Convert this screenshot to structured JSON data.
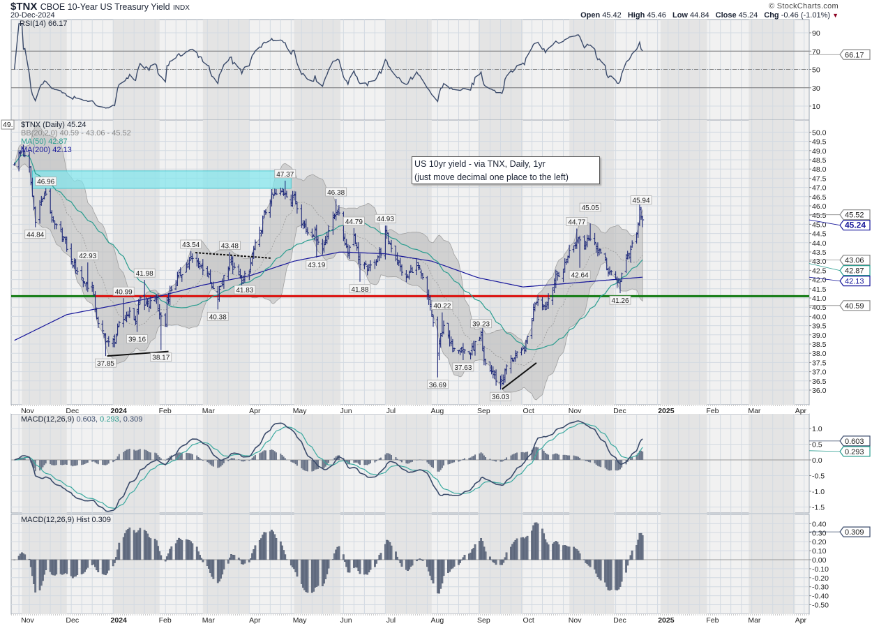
{
  "header": {
    "symbol": "$TNX",
    "name": "CBOE 10-Year US Treasury Yield",
    "exchange": "INDX",
    "date": "20-Dec-2024",
    "copyright": "© StockCharts.com",
    "open_label": "Open",
    "open": "45.42",
    "high_label": "High",
    "high": "45.46",
    "low_label": "Low",
    "low": "44.84",
    "close_label": "Close",
    "close": "45.24",
    "chg_label": "Chg",
    "chg": "-0.46 (-1.01%)"
  },
  "legends": {
    "rsi": "RSI(14) 66.17",
    "price": "$TNX (Daily) 45.24",
    "bb": "BB(20,2.0) 40.59 - 43.06 - 45.52",
    "ma50": "MA(50) 42.87",
    "ma200": "MA(200) 42.13",
    "macd_name": "MACD(12,26,9)",
    "macd_v1": "0.603",
    "macd_v2": "0.293",
    "macd_v3": "0.309",
    "hist": "MACD(12,26,9) Hist 0.309"
  },
  "note": {
    "line1": "US 10yr yield - via TNX, Daily, 1yr",
    "line2": "(just move decimal one place to the left)"
  },
  "colors": {
    "bars": "#1f2a7a",
    "ma50": "#2a9d8f",
    "ma200": "#16169a",
    "bb": "#9a9a9a",
    "zone": "#7fe6ec",
    "support": "#117a11",
    "resistance": "#e01010",
    "macd": "#3a4a6a",
    "signal": "#3aa99f",
    "hist": "#6a7488"
  },
  "chart_data": {
    "type": "line",
    "title": "$TNX CBOE 10-Year US Treasury Yield",
    "start": "2023-10-27",
    "end": "2024-12-20",
    "last_bar": {
      "date": "2024-12-20",
      "open": 45.42,
      "high": 45.46,
      "low": 44.84,
      "close": 45.24
    },
    "close_anchors": [
      [
        "2023-10-27",
        48.4
      ],
      [
        "2023-10-30",
        48.8
      ],
      [
        "2023-11-01",
        49.0
      ],
      [
        "2023-11-06",
        48.0
      ],
      [
        "2023-11-08",
        46.5
      ],
      [
        "2023-11-10",
        45.3
      ],
      [
        "2023-11-14",
        46.3
      ],
      [
        "2023-11-17",
        46.7
      ],
      [
        "2023-11-22",
        45.0
      ],
      [
        "2023-11-28",
        44.5
      ],
      [
        "2023-12-04",
        43.0
      ],
      [
        "2023-12-08",
        42.5
      ],
      [
        "2023-12-13",
        41.8
      ],
      [
        "2023-12-18",
        41.5
      ],
      [
        "2023-12-20",
        40.5
      ],
      [
        "2023-12-22",
        39.5
      ],
      [
        "2023-12-27",
        38.8
      ],
      [
        "2023-12-29",
        38.5
      ],
      [
        "2024-01-02",
        38.7
      ],
      [
        "2024-01-05",
        39.5
      ],
      [
        "2024-01-11",
        40.2
      ],
      [
        "2024-01-16",
        39.8
      ],
      [
        "2024-01-19",
        41.0
      ],
      [
        "2024-01-24",
        40.5
      ],
      [
        "2024-01-29",
        41.2
      ],
      [
        "2024-01-31",
        40.3
      ],
      [
        "2024-02-05",
        39.5
      ],
      [
        "2024-02-06",
        40.9
      ],
      [
        "2024-02-09",
        41.5
      ],
      [
        "2024-02-14",
        42.2
      ],
      [
        "2024-02-20",
        42.9
      ],
      [
        "2024-02-23",
        43.1
      ],
      [
        "2024-02-28",
        42.8
      ],
      [
        "2024-03-04",
        42.4
      ],
      [
        "2024-03-07",
        41.5
      ],
      [
        "2024-03-11",
        41.0
      ],
      [
        "2024-03-14",
        42.0
      ],
      [
        "2024-03-19",
        43.0
      ],
      [
        "2024-03-22",
        42.5
      ],
      [
        "2024-03-27",
        42.0
      ],
      [
        "2024-04-01",
        42.4
      ],
      [
        "2024-04-03",
        43.4
      ],
      [
        "2024-04-08",
        44.5
      ],
      [
        "2024-04-11",
        45.5
      ],
      [
        "2024-04-16",
        46.5
      ],
      [
        "2024-04-19",
        46.6
      ],
      [
        "2024-04-25",
        46.8
      ],
      [
        "2024-04-29",
        46.2
      ],
      [
        "2024-05-01",
        46.6
      ],
      [
        "2024-05-06",
        45.2
      ],
      [
        "2024-05-10",
        44.6
      ],
      [
        "2024-05-15",
        44.5
      ],
      [
        "2024-05-20",
        43.6
      ],
      [
        "2024-05-23",
        44.5
      ],
      [
        "2024-05-28",
        45.5
      ],
      [
        "2024-05-30",
        45.8
      ],
      [
        "2024-06-03",
        44.3
      ],
      [
        "2024-06-06",
        43.5
      ],
      [
        "2024-06-10",
        44.5
      ],
      [
        "2024-06-14",
        42.8
      ],
      [
        "2024-06-20",
        42.6
      ],
      [
        "2024-06-24",
        43.0
      ],
      [
        "2024-06-28",
        43.5
      ],
      [
        "2024-07-01",
        44.5
      ],
      [
        "2024-07-05",
        43.8
      ],
      [
        "2024-07-09",
        43.0
      ],
      [
        "2024-07-15",
        42.0
      ],
      [
        "2024-07-18",
        42.5
      ],
      [
        "2024-07-22",
        42.8
      ],
      [
        "2024-07-26",
        42.0
      ],
      [
        "2024-07-31",
        40.5
      ],
      [
        "2024-08-02",
        39.6
      ],
      [
        "2024-08-05",
        38.0
      ],
      [
        "2024-08-07",
        39.0
      ],
      [
        "2024-08-09",
        39.6
      ],
      [
        "2024-08-13",
        38.5
      ],
      [
        "2024-08-19",
        38.3
      ],
      [
        "2024-08-22",
        38.2
      ],
      [
        "2024-08-27",
        38.0
      ],
      [
        "2024-08-30",
        38.5
      ],
      [
        "2024-09-03",
        38.8
      ],
      [
        "2024-09-05",
        37.5
      ],
      [
        "2024-09-10",
        37.0
      ],
      [
        "2024-09-13",
        36.6
      ],
      [
        "2024-09-17",
        36.4
      ],
      [
        "2024-09-20",
        37.3
      ],
      [
        "2024-09-25",
        37.8
      ],
      [
        "2024-09-30",
        38.0
      ],
      [
        "2024-10-03",
        38.5
      ],
      [
        "2024-10-07",
        40.0
      ],
      [
        "2024-10-09",
        40.8
      ],
      [
        "2024-10-11",
        41.0
      ],
      [
        "2024-10-16",
        40.5
      ],
      [
        "2024-10-18",
        41.0
      ],
      [
        "2024-10-22",
        42.0
      ],
      [
        "2024-10-28",
        42.6
      ],
      [
        "2024-10-31",
        43.4
      ],
      [
        "2024-11-04",
        43.8
      ],
      [
        "2024-11-07",
        44.3
      ],
      [
        "2024-11-11",
        43.8
      ],
      [
        "2024-11-13",
        44.3
      ],
      [
        "2024-11-15",
        44.2
      ],
      [
        "2024-11-19",
        43.8
      ],
      [
        "2024-11-25",
        43.0
      ],
      [
        "2024-11-26",
        42.6
      ],
      [
        "2024-11-29",
        42.3
      ],
      [
        "2024-12-03",
        41.8
      ],
      [
        "2024-12-05",
        42.0
      ],
      [
        "2024-12-09",
        43.0
      ],
      [
        "2024-12-13",
        44.0
      ],
      [
        "2024-12-16",
        44.5
      ],
      [
        "2024-12-18",
        45.7
      ],
      [
        "2024-12-20",
        45.24
      ]
    ],
    "ma200_anchors": [
      [
        "2023-10-27",
        38.7
      ],
      [
        "2023-12-01",
        40.1
      ],
      [
        "2024-01-02",
        40.6
      ],
      [
        "2024-02-01",
        41.1
      ],
      [
        "2024-03-01",
        41.7
      ],
      [
        "2024-04-01",
        42.2
      ],
      [
        "2024-05-01",
        43.0
      ],
      [
        "2024-06-01",
        43.5
      ],
      [
        "2024-07-01",
        43.4
      ],
      [
        "2024-08-01",
        43.0
      ],
      [
        "2024-09-01",
        42.1
      ],
      [
        "2024-10-01",
        41.6
      ],
      [
        "2024-11-01",
        41.8
      ],
      [
        "2024-12-20",
        42.13
      ]
    ],
    "price_labels": [
      {
        "text": "44.84",
        "date": "2023-11-10",
        "pos": "below"
      },
      {
        "text": "46.96",
        "date": "2023-11-17",
        "pos": "above"
      },
      {
        "text": "42.93",
        "date": "2023-12-15",
        "pos": "above"
      },
      {
        "text": "37.85",
        "date": "2023-12-27",
        "pos": "below"
      },
      {
        "text": "40.99",
        "date": "2024-01-08",
        "pos": "above"
      },
      {
        "text": "39.16",
        "date": "2024-01-17",
        "pos": "below"
      },
      {
        "text": "41.98",
        "date": "2024-01-22",
        "pos": "above"
      },
      {
        "text": "38.17",
        "date": "2024-02-02",
        "pos": "below"
      },
      {
        "text": "43.54",
        "date": "2024-02-22",
        "pos": "above"
      },
      {
        "text": "40.38",
        "date": "2024-03-11",
        "pos": "below"
      },
      {
        "text": "43.48",
        "date": "2024-03-19",
        "pos": "above"
      },
      {
        "text": "41.83",
        "date": "2024-03-29",
        "pos": "below"
      },
      {
        "text": "47.37",
        "date": "2024-04-25",
        "pos": "above"
      },
      {
        "text": "43.19",
        "date": "2024-05-16",
        "pos": "below"
      },
      {
        "text": "46.38",
        "date": "2024-05-29",
        "pos": "above"
      },
      {
        "text": "44.79",
        "date": "2024-06-10",
        "pos": "above"
      },
      {
        "text": "41.88",
        "date": "2024-06-14",
        "pos": "below"
      },
      {
        "text": "44.93",
        "date": "2024-07-01",
        "pos": "above"
      },
      {
        "text": "36.69",
        "date": "2024-08-05",
        "pos": "below"
      },
      {
        "text": "40.22",
        "date": "2024-08-08",
        "pos": "above"
      },
      {
        "text": "37.63",
        "date": "2024-08-22",
        "pos": "below"
      },
      {
        "text": "39.23",
        "date": "2024-09-03",
        "pos": "above"
      },
      {
        "text": "36.03",
        "date": "2024-09-16",
        "pos": "below"
      },
      {
        "text": "44.77",
        "date": "2024-11-06",
        "pos": "above"
      },
      {
        "text": "42.64",
        "date": "2024-11-08",
        "pos": "below"
      },
      {
        "text": "45.05",
        "date": "2024-11-15",
        "pos": "above"
      },
      {
        "text": "41.26",
        "date": "2024-12-05",
        "pos": "below"
      },
      {
        "text": "45.94",
        "date": "2024-12-19",
        "pos": "above"
      }
    ],
    "annotations": {
      "zone": {
        "from": "2023-11-08",
        "to": "2024-04-29",
        "low": 46.95,
        "high": 47.9
      },
      "support": {
        "value": 41.1
      },
      "resistance": {
        "from": "2023-12-20",
        "to": "2024-10-19",
        "value": 41.1
      },
      "trendlines": [
        {
          "from": [
            "2023-12-28",
            37.85
          ],
          "to": [
            "2024-02-07",
            38.1
          ],
          "style": "solid"
        },
        {
          "from": [
            "2024-02-25",
            43.46
          ],
          "to": [
            "2024-04-16",
            43.16
          ],
          "style": "dotted"
        },
        {
          "from": [
            "2024-09-17",
            36.05
          ],
          "to": [
            "2024-10-10",
            37.48
          ],
          "style": "solid"
        }
      ]
    },
    "months": [
      {
        "label": "Nov",
        "date": "2023-11-01"
      },
      {
        "label": "Dec",
        "date": "2023-12-01"
      },
      {
        "label": "2024",
        "date": "2024-01-01",
        "bold": true
      },
      {
        "label": "Feb",
        "date": "2024-02-01"
      },
      {
        "label": "Mar",
        "date": "2024-03-01"
      },
      {
        "label": "Apr",
        "date": "2024-04-01"
      },
      {
        "label": "May",
        "date": "2024-05-01"
      },
      {
        "label": "Jun",
        "date": "2024-06-01"
      },
      {
        "label": "Jul",
        "date": "2024-07-01"
      },
      {
        "label": "Aug",
        "date": "2024-08-01"
      },
      {
        "label": "Sep",
        "date": "2024-09-01"
      },
      {
        "label": "Oct",
        "date": "2024-10-01"
      },
      {
        "label": "Nov",
        "date": "2024-11-01"
      },
      {
        "label": "Dec",
        "date": "2024-12-01"
      },
      {
        "label": "2025",
        "date": "2025-01-01",
        "bold": true
      },
      {
        "label": "Feb",
        "date": "2025-02-01"
      },
      {
        "label": "Mar",
        "date": "2025-03-01"
      },
      {
        "label": "Apr",
        "date": "2025-04-01"
      }
    ],
    "ticks": {
      "rsi": [
        "90",
        "70",
        "50",
        "30",
        "10"
      ],
      "price": [
        "36.0",
        "36.5",
        "37.0",
        "37.5",
        "38.0",
        "38.5",
        "39.0",
        "39.5",
        "40.0",
        "40.5",
        "41.0",
        "41.5",
        "42.0",
        "42.5",
        "43.0",
        "43.5",
        "44.0",
        "44.5",
        "45.0",
        "45.5",
        "46.0",
        "46.5",
        "47.0",
        "47.5",
        "48.0",
        "48.5",
        "49.0",
        "49.5",
        "50.0"
      ],
      "macd": [
        "1.0",
        "0.5",
        "0.0",
        "-0.5",
        "-1.0",
        "-1.5"
      ],
      "hist": [
        "0.40",
        "0.30",
        "0.20",
        "0.10",
        "0.00",
        "-0.10",
        "-0.20",
        "-0.30",
        "-0.40",
        "-0.50"
      ]
    },
    "tags": [
      {
        "panel": "rsi",
        "value": 66.17,
        "text": "66.17",
        "kind": "plain"
      },
      {
        "panel": "price",
        "value": 45.52,
        "text": "45.52",
        "kind": "plain"
      },
      {
        "panel": "price",
        "value": 45.24,
        "text": "45.24",
        "kind": "close"
      },
      {
        "panel": "price",
        "value": 42.87,
        "text": "42.87",
        "kind": "ma50"
      },
      {
        "panel": "price",
        "value": 43.06,
        "text": "43.06",
        "kind": "plain"
      },
      {
        "panel": "price",
        "value": 42.13,
        "text": "42.13",
        "kind": "ma200"
      },
      {
        "panel": "price",
        "value": 40.59,
        "text": "40.59",
        "kind": "plain"
      },
      {
        "panel": "macd",
        "value": 0.603,
        "text": "0.603",
        "kind": "macd"
      },
      {
        "panel": "macd",
        "value": 0.293,
        "text": "0.293",
        "kind": "signal"
      },
      {
        "panel": "hist",
        "value": 0.309,
        "text": "0.309",
        "kind": "macd"
      }
    ],
    "left_tag": "49.",
    "rsi_levels": [
      70,
      50,
      30
    ],
    "ylim": {
      "rsi": [
        -0.5,
        104.5
      ],
      "price": [
        35.2,
        50.6
      ],
      "macd": [
        -1.7,
        1.45
      ],
      "hist": [
        -0.6,
        0.53
      ]
    }
  }
}
